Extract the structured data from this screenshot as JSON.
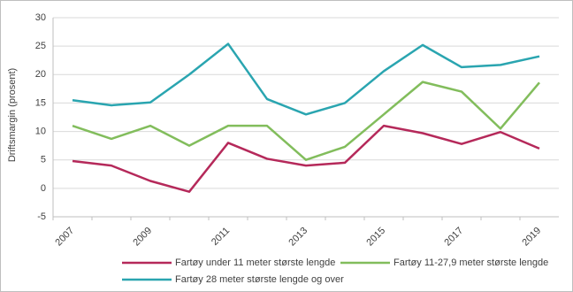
{
  "chart_data": {
    "type": "line",
    "y_label": "Driftsmargin (prosent)",
    "categories": [
      "2007",
      null,
      "2009",
      null,
      "2011",
      null,
      "2013",
      null,
      "2015",
      null,
      "2017",
      null,
      "2019"
    ],
    "series": [
      {
        "name": "Fartøy under 11 meter største lengde",
        "color": "#b5295a",
        "values": [
          4.8,
          4.0,
          1.3,
          -0.6,
          8.0,
          5.2,
          4.0,
          4.5,
          11.0,
          9.7,
          7.8,
          9.9,
          7.0
        ]
      },
      {
        "name": "Fartøy 11-27,9 meter største lengde",
        "color": "#82bd5c",
        "values": [
          11.0,
          8.7,
          11.0,
          7.5,
          11.0,
          11.0,
          5.0,
          7.3,
          13.0,
          18.7,
          17.0,
          10.5,
          18.6
        ]
      },
      {
        "name": "Fartøy 28 meter største lengde og over",
        "color": "#2aa5b0",
        "values": [
          15.5,
          14.6,
          15.1,
          20.0,
          25.4,
          15.7,
          13.0,
          15.0,
          20.6,
          25.2,
          21.3,
          21.7,
          23.2
        ]
      }
    ],
    "ylim": [
      -5,
      30
    ],
    "yticks": [
      -5,
      0,
      5,
      10,
      15,
      20,
      25,
      30
    ],
    "grid": true
  }
}
